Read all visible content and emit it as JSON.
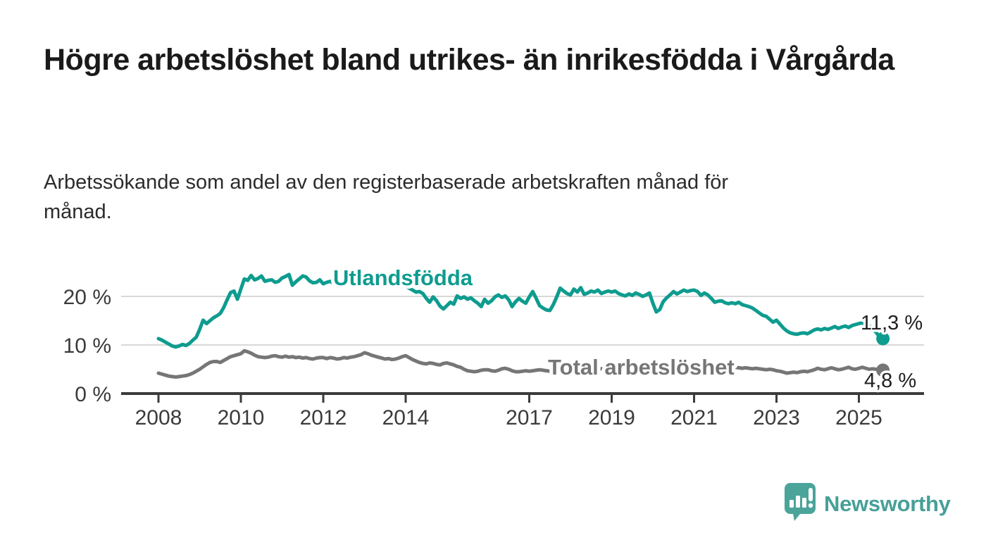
{
  "chart_data": {
    "type": "line",
    "title": "Högre arbetslöshet bland utrikes- än inrikesfödda i Vårgårda",
    "subtitle": "Arbetssökande som andel av den registerbaserade arbetskraften månad för månad.",
    "x_start_year": 2008,
    "x_step_months": 1,
    "xlim": [
      2007.1,
      2026.5
    ],
    "ylim": [
      0,
      26
    ],
    "grid": true,
    "legend_position": "inline-labels-on-lines",
    "x_ticks": [
      {
        "year": 2008,
        "label": "2008"
      },
      {
        "year": 2010,
        "label": "2010"
      },
      {
        "year": 2012,
        "label": "2012"
      },
      {
        "year": 2014,
        "label": "2014"
      },
      {
        "year": 2017,
        "label": "2017"
      },
      {
        "year": 2019,
        "label": "2019"
      },
      {
        "year": 2021,
        "label": "2021"
      },
      {
        "year": 2023,
        "label": "2023"
      },
      {
        "year": 2025,
        "label": "2025"
      }
    ],
    "y_ticks": [
      {
        "value": 0,
        "label": "0 %"
      },
      {
        "value": 10,
        "label": "10 %"
      },
      {
        "value": 20,
        "label": "20 %"
      }
    ],
    "series": [
      {
        "name": "Utlandsfödda",
        "color": "#0e9c8f",
        "end_value": 11.3,
        "end_label": "11,3 %",
        "values": [
          11.3,
          11.0,
          10.6,
          10.2,
          9.8,
          9.6,
          9.8,
          10.1,
          9.9,
          10.3,
          11.0,
          11.6,
          13.2,
          15.1,
          14.4,
          15.0,
          15.6,
          16.0,
          16.5,
          17.7,
          19.3,
          20.8,
          21.1,
          19.4,
          21.5,
          23.6,
          23.3,
          24.3,
          23.4,
          23.7,
          24.2,
          23.1,
          23.3,
          23.4,
          22.9,
          23.1,
          23.8,
          24.1,
          24.5,
          22.3,
          23.0,
          23.6,
          24.2,
          24.0,
          23.2,
          22.8,
          22.9,
          23.4,
          22.6,
          22.9,
          23.1,
          22.7,
          23.0,
          22.8,
          22.9,
          23.1,
          22.8,
          22.7,
          22.5,
          22.7,
          22.4,
          22.7,
          22.4,
          22.6,
          22.3,
          22.5,
          22.2,
          22.4,
          22.1,
          22.3,
          22.0,
          22.1,
          22.0,
          21.7,
          21.3,
          20.9,
          21.0,
          20.6,
          19.6,
          18.8,
          19.9,
          19.1,
          18.0,
          17.4,
          18.1,
          18.8,
          18.4,
          20.1,
          19.6,
          19.9,
          19.4,
          19.7,
          19.1,
          18.6,
          17.9,
          19.4,
          18.6,
          19.1,
          19.9,
          20.3,
          19.8,
          20.1,
          19.3,
          17.9,
          18.9,
          19.6,
          19.0,
          18.6,
          19.9,
          21.0,
          19.6,
          18.1,
          17.6,
          17.2,
          17.1,
          18.3,
          19.9,
          21.7,
          21.1,
          20.6,
          20.3,
          21.5,
          20.9,
          21.8,
          20.4,
          20.7,
          21.1,
          20.9,
          21.3,
          20.6,
          20.9,
          21.1,
          20.9,
          21.1,
          20.6,
          20.3,
          20.1,
          20.5,
          20.2,
          20.7,
          20.4,
          20.0,
          20.3,
          20.7,
          18.6,
          16.8,
          17.3,
          18.9,
          19.7,
          20.3,
          21.0,
          20.5,
          20.9,
          21.3,
          21.0,
          21.2,
          21.3,
          21.0,
          20.2,
          20.7,
          20.3,
          19.6,
          18.8,
          19.0,
          19.1,
          18.7,
          18.5,
          18.7,
          18.5,
          18.8,
          18.3,
          18.1,
          17.9,
          17.6,
          17.1,
          16.6,
          16.1,
          15.9,
          15.3,
          14.7,
          15.1,
          14.3,
          13.5,
          12.9,
          12.5,
          12.3,
          12.2,
          12.4,
          12.5,
          12.3,
          12.7,
          13.1,
          13.3,
          13.1,
          13.4,
          13.2,
          13.5,
          13.8,
          13.4,
          13.7,
          13.9,
          13.6,
          14.0,
          14.2,
          14.4,
          14.6,
          14.1,
          13.9,
          13.4,
          12.6,
          11.7,
          11.3
        ]
      },
      {
        "name": "Total arbetslöshet",
        "color": "#767676",
        "end_value": 4.8,
        "end_label": "4,8 %",
        "values": [
          4.2,
          4.0,
          3.8,
          3.6,
          3.5,
          3.4,
          3.5,
          3.6,
          3.7,
          3.9,
          4.2,
          4.6,
          5.0,
          5.5,
          6.0,
          6.4,
          6.6,
          6.6,
          6.4,
          6.8,
          7.2,
          7.6,
          7.8,
          8.0,
          8.2,
          8.8,
          8.6,
          8.3,
          7.9,
          7.6,
          7.5,
          7.4,
          7.5,
          7.7,
          7.8,
          7.6,
          7.5,
          7.7,
          7.5,
          7.6,
          7.4,
          7.5,
          7.3,
          7.4,
          7.2,
          7.1,
          7.3,
          7.4,
          7.4,
          7.2,
          7.4,
          7.3,
          7.1,
          7.2,
          7.4,
          7.3,
          7.5,
          7.6,
          7.8,
          8.0,
          8.4,
          8.2,
          7.9,
          7.7,
          7.5,
          7.3,
          7.1,
          7.2,
          7.0,
          7.1,
          7.3,
          7.6,
          7.8,
          7.4,
          7.0,
          6.7,
          6.4,
          6.2,
          6.1,
          6.3,
          6.2,
          6.0,
          5.9,
          6.2,
          6.3,
          6.1,
          5.9,
          5.6,
          5.4,
          5.0,
          4.7,
          4.6,
          4.5,
          4.6,
          4.8,
          4.9,
          4.9,
          4.7,
          4.6,
          4.8,
          5.1,
          5.2,
          5.0,
          4.7,
          4.5,
          4.5,
          4.6,
          4.7,
          4.6,
          4.7,
          4.8,
          4.9,
          4.8,
          4.7,
          4.6,
          4.7,
          4.8,
          4.9,
          5.0,
          5.1,
          5.2,
          5.3,
          5.2,
          5.1,
          5.0,
          5.1,
          5.2,
          5.1,
          5.0,
          5.1,
          5.2,
          5.3,
          5.2,
          5.1,
          5.0,
          5.1,
          5.2,
          5.3,
          5.4,
          5.3,
          5.2,
          5.3,
          5.4,
          5.5,
          5.6,
          5.8,
          6.2,
          6.5,
          6.4,
          6.3,
          6.2,
          6.1,
          6.0,
          5.9,
          5.8,
          5.7,
          5.8,
          5.7,
          5.6,
          5.5,
          5.4,
          5.3,
          5.2,
          5.3,
          5.2,
          5.1,
          5.2,
          5.3,
          5.4,
          5.3,
          5.2,
          5.3,
          5.2,
          5.1,
          5.2,
          5.1,
          5.0,
          4.9,
          5.0,
          4.9,
          4.7,
          4.6,
          4.4,
          4.2,
          4.3,
          4.4,
          4.3,
          4.5,
          4.6,
          4.5,
          4.7,
          4.9,
          5.2,
          5.0,
          4.9,
          5.1,
          5.3,
          5.1,
          4.9,
          5.0,
          5.2,
          5.4,
          5.1,
          5.0,
          5.2,
          5.4,
          5.2,
          5.0,
          5.1,
          5.0,
          4.9,
          4.8
        ]
      }
    ]
  },
  "footer": {
    "brand": "Newsworthy"
  }
}
